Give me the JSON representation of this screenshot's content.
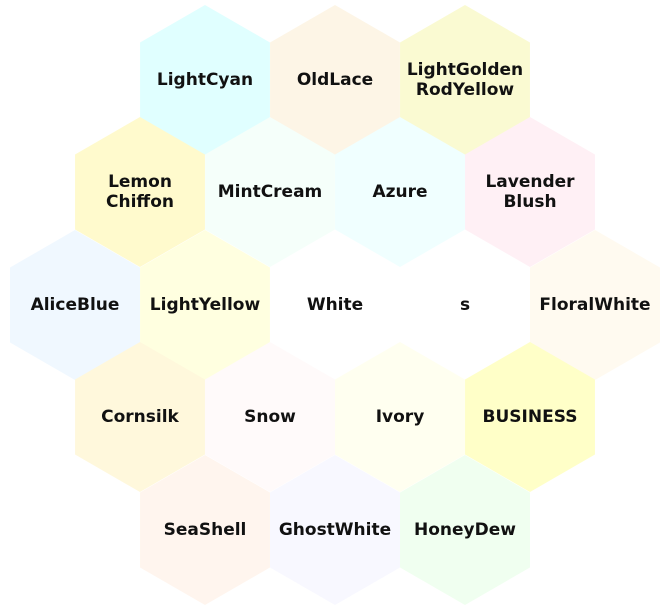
{
  "hexes": [
    {
      "id": "lightcyan",
      "lines": [
        "LightCyan"
      ],
      "fill": "#E0FFFF"
    },
    {
      "id": "oldlace",
      "lines": [
        "OldLace"
      ],
      "fill": "#FDF5E6"
    },
    {
      "id": "lightgoldenrodyellow",
      "lines": [
        "LightGolden",
        "RodYellow"
      ],
      "fill": "#FAFAD2"
    },
    {
      "id": "lemonchiffon",
      "lines": [
        "Lemon",
        "Chiffon"
      ],
      "fill": "#FFFACD"
    },
    {
      "id": "mintcream",
      "lines": [
        "MintCream"
      ],
      "fill": "#F5FFFA"
    },
    {
      "id": "azure",
      "lines": [
        "Azure"
      ],
      "fill": "#F0FFFF"
    },
    {
      "id": "lavenderblush",
      "lines": [
        "Lavender",
        "Blush"
      ],
      "fill": "#FFF0F5"
    },
    {
      "id": "aliceblue",
      "lines": [
        "AliceBlue"
      ],
      "fill": "#F0F8FF"
    },
    {
      "id": "lightyellow",
      "lines": [
        "LightYellow"
      ],
      "fill": "#FFFFE0"
    },
    {
      "id": "white",
      "lines": [
        "White"
      ],
      "fill": "#FFFFFF"
    },
    {
      "id": "s",
      "lines": [
        "s"
      ],
      "fill": "#FFFFFF"
    },
    {
      "id": "floralwhite",
      "lines": [
        "FloralWhite"
      ],
      "fill": "#FFFAF0"
    },
    {
      "id": "cornsilk",
      "lines": [
        "Cornsilk"
      ],
      "fill": "#FFF8DC"
    },
    {
      "id": "snow",
      "lines": [
        "Snow"
      ],
      "fill": "#FFFAFA"
    },
    {
      "id": "ivory",
      "lines": [
        "Ivory"
      ],
      "fill": "#FFFFF0"
    },
    {
      "id": "business",
      "lines": [
        "BUSINESS"
      ],
      "fill": "#FFFFC8"
    },
    {
      "id": "seashell",
      "lines": [
        "SeaShell"
      ],
      "fill": "#FFF5EE"
    },
    {
      "id": "ghostwhite",
      "lines": [
        "GhostWhite"
      ],
      "fill": "#F8F8FF"
    },
    {
      "id": "honeydew",
      "lines": [
        "HoneyDew"
      ],
      "fill": "#F0FFF0"
    }
  ]
}
